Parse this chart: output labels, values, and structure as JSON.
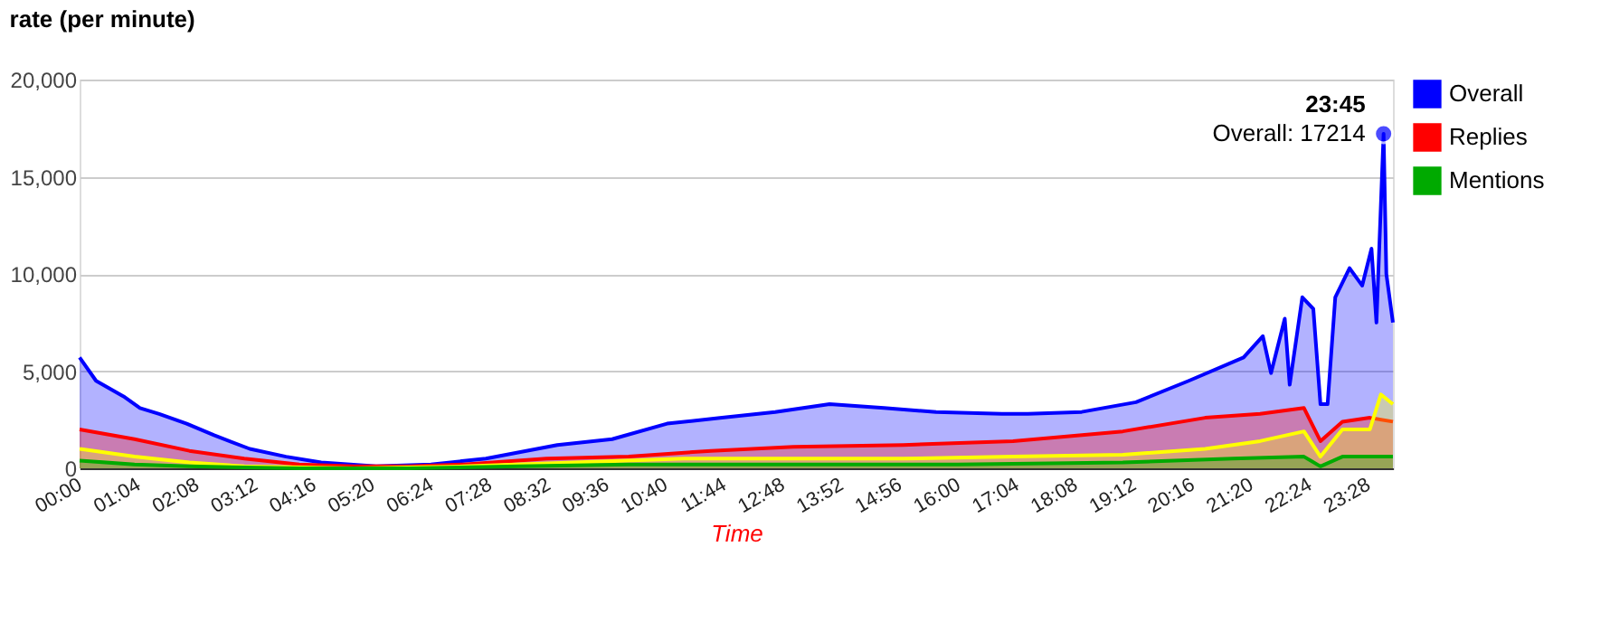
{
  "chart_data": {
    "type": "area",
    "title": "rate (per minute)",
    "xlabel": "Time",
    "xlim": [
      0,
      23.92
    ],
    "ylim": [
      0,
      20000
    ],
    "yticks": [
      0,
      {
        "value": 5000,
        "label": "5,000"
      },
      {
        "value": 10000,
        "label": "10,000"
      },
      {
        "value": 15000,
        "label": "15,000"
      },
      {
        "value": 20000,
        "label": "20,000"
      }
    ],
    "xticks": [
      {
        "value": 0,
        "label": "00:00"
      },
      {
        "value": 1.0667,
        "label": "01:04"
      },
      {
        "value": 2.1333,
        "label": "02:08"
      },
      {
        "value": 3.2,
        "label": "03:12"
      },
      {
        "value": 4.2667,
        "label": "04:16"
      },
      {
        "value": 5.3333,
        "label": "05:20"
      },
      {
        "value": 6.4,
        "label": "06:24"
      },
      {
        "value": 7.4667,
        "label": "07:28"
      },
      {
        "value": 8.5333,
        "label": "08:32"
      },
      {
        "value": 9.6,
        "label": "09:36"
      },
      {
        "value": 10.6667,
        "label": "10:40"
      },
      {
        "value": 11.7333,
        "label": "11:44"
      },
      {
        "value": 12.8,
        "label": "12:48"
      },
      {
        "value": 13.8667,
        "label": "13:52"
      },
      {
        "value": 14.9333,
        "label": "14:56"
      },
      {
        "value": 16,
        "label": "16:00"
      },
      {
        "value": 17.0667,
        "label": "17:04"
      },
      {
        "value": 18.1333,
        "label": "18:08"
      },
      {
        "value": 19.2,
        "label": "19:12"
      },
      {
        "value": 20.2667,
        "label": "20:16"
      },
      {
        "value": 21.3333,
        "label": "21:20"
      },
      {
        "value": 22.4,
        "label": "22:24"
      },
      {
        "value": 23.4667,
        "label": "23:28"
      }
    ],
    "grid": "y",
    "legend": "right",
    "series": [
      {
        "name": "Overall",
        "color": "#0000ff",
        "x": [
          0,
          0.3,
          0.8,
          1.1,
          1.45,
          1.95,
          2.45,
          3.1,
          3.76,
          4.4,
          5.4,
          6.4,
          7.4,
          8.7,
          9.7,
          10.7,
          11.7,
          12.67,
          13.66,
          14.65,
          15.6,
          16.8,
          17.27,
          18.25,
          19.24,
          20.2,
          21.2,
          21.55,
          21.7,
          21.95,
          22.04,
          22.27,
          22.47,
          22.6,
          22.73,
          22.87,
          23.13,
          23.36,
          23.53,
          23.62,
          23.75,
          23.8,
          23.92
        ],
        "values": [
          5700,
          4500,
          3700,
          3100,
          2800,
          2300,
          1700,
          1000,
          600,
          300,
          100,
          200,
          500,
          1200,
          1500,
          2300,
          2600,
          2900,
          3300,
          3100,
          2900,
          2800,
          2800,
          2900,
          3400,
          4500,
          5700,
          6800,
          4900,
          7700,
          4300,
          8800,
          8200,
          3300,
          3300,
          8800,
          10300,
          9400,
          11300,
          7500,
          17214,
          10000,
          7500
        ]
      },
      {
        "name": "Replies",
        "color": "#ff0000",
        "x": [
          0,
          1,
          2,
          3,
          4,
          5,
          6,
          7,
          8.5,
          10,
          11.5,
          13,
          15,
          17,
          19,
          20.5,
          21.5,
          22.3,
          22.6,
          23,
          23.5,
          23.92
        ],
        "values": [
          2000,
          1500,
          900,
          500,
          200,
          100,
          100,
          200,
          500,
          600,
          900,
          1100,
          1200,
          1400,
          1900,
          2600,
          2800,
          3100,
          1400,
          2400,
          2600,
          2400
        ]
      },
      {
        "color": "#ffff00",
        "x": [
          0,
          1,
          2,
          3,
          5,
          7,
          9,
          11,
          13,
          15,
          17,
          19,
          20.5,
          21.5,
          22.3,
          22.6,
          23,
          23.5,
          23.7,
          23.92
        ],
        "values": [
          1000,
          600,
          300,
          100,
          0,
          100,
          300,
          500,
          500,
          500,
          600,
          700,
          1000,
          1400,
          1900,
          600,
          2000,
          2000,
          3800,
          3300
        ]
      },
      {
        "name": "Mentions",
        "color": "#00aa00",
        "x": [
          0,
          1,
          2,
          4,
          6,
          8,
          10,
          13,
          16,
          19,
          21,
          22.3,
          22.6,
          23,
          23.92
        ],
        "values": [
          400,
          200,
          100,
          0,
          0,
          100,
          200,
          200,
          200,
          300,
          500,
          600,
          100,
          600,
          600
        ]
      }
    ],
    "annotations": [
      {
        "text": "23:45",
        "x": 23.75,
        "y": 17214
      },
      {
        "text": "Overall: 17214",
        "x": 23.75,
        "y": 17214
      }
    ]
  }
}
